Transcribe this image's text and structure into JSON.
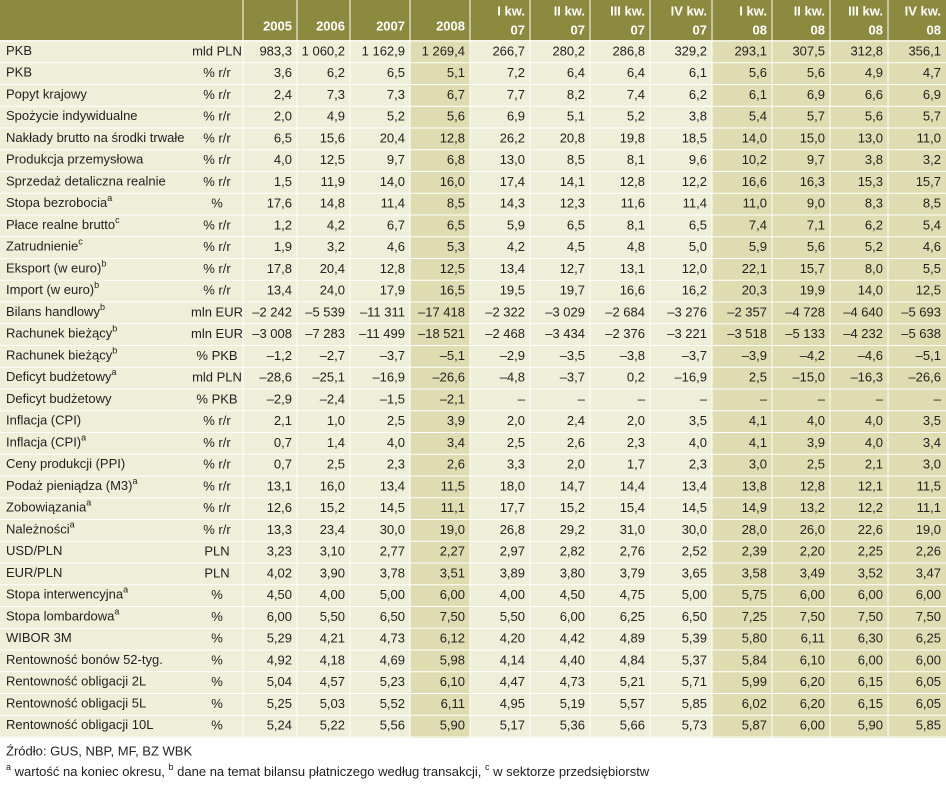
{
  "table": {
    "columns": [
      [
        "2005"
      ],
      [
        "2006"
      ],
      [
        "2007"
      ],
      [
        "2008"
      ],
      [
        "I kw.",
        "07"
      ],
      [
        "II kw.",
        "07"
      ],
      [
        "III kw.",
        "07"
      ],
      [
        "IV kw.",
        "07"
      ],
      [
        "I kw.",
        "08"
      ],
      [
        "II kw.",
        "08"
      ],
      [
        "III kw.",
        "08"
      ],
      [
        "IV kw.",
        "08"
      ]
    ],
    "rows": [
      {
        "label": "PKB",
        "unit": "mld PLN",
        "values": [
          "983,3",
          "1 060,2",
          "1 162,9",
          "1 269,4",
          "266,7",
          "280,2",
          "286,8",
          "329,2",
          "293,1",
          "307,5",
          "312,8",
          "356,1"
        ]
      },
      {
        "label": "PKB",
        "unit": "% r/r",
        "values": [
          "3,6",
          "6,2",
          "6,5",
          "5,1",
          "7,2",
          "6,4",
          "6,4",
          "6,1",
          "5,6",
          "5,6",
          "4,9",
          "4,7"
        ]
      },
      {
        "label": "Popyt krajowy",
        "unit": "% r/r",
        "values": [
          "2,4",
          "7,3",
          "7,3",
          "6,7",
          "7,7",
          "8,2",
          "7,4",
          "6,2",
          "6,1",
          "6,9",
          "6,6",
          "6,9"
        ]
      },
      {
        "label": "Spożycie indywidualne",
        "unit": "% r/r",
        "values": [
          "2,0",
          "4,9",
          "5,2",
          "5,6",
          "6,9",
          "5,1",
          "5,2",
          "3,8",
          "5,4",
          "5,7",
          "5,6",
          "5,7"
        ]
      },
      {
        "label": "Nakłady brutto na środki trwałe",
        "unit": "% r/r",
        "values": [
          "6,5",
          "15,6",
          "20,4",
          "12,8",
          "26,2",
          "20,8",
          "19,8",
          "18,5",
          "14,0",
          "15,0",
          "13,0",
          "11,0"
        ]
      },
      {
        "label": "Produkcja przemysłowa",
        "unit": "% r/r",
        "values": [
          "4,0",
          "12,5",
          "9,7",
          "6,8",
          "13,0",
          "8,5",
          "8,1",
          "9,6",
          "10,2",
          "9,7",
          "3,8",
          "3,2"
        ]
      },
      {
        "label": "Sprzedaż detaliczna realnie",
        "unit": "% r/r",
        "values": [
          "1,5",
          "11,9",
          "14,0",
          "16,0",
          "17,4",
          "14,1",
          "12,8",
          "12,2",
          "16,6",
          "16,3",
          "15,3",
          "15,7"
        ]
      },
      {
        "label": "Stopa bezrobocia",
        "note": "a",
        "unit": "%",
        "values": [
          "17,6",
          "14,8",
          "11,4",
          "8,5",
          "14,3",
          "12,3",
          "11,6",
          "11,4",
          "11,0",
          "9,0",
          "8,3",
          "8,5"
        ]
      },
      {
        "label": "Płace realne brutto",
        "note": "c",
        "unit": "% r/r",
        "values": [
          "1,2",
          "4,2",
          "6,7",
          "6,5",
          "5,9",
          "6,5",
          "8,1",
          "6,5",
          "7,4",
          "7,1",
          "6,2",
          "5,4"
        ]
      },
      {
        "label": "Zatrudnienie",
        "note": "c",
        "unit": "% r/r",
        "values": [
          "1,9",
          "3,2",
          "4,6",
          "5,3",
          "4,2",
          "4,5",
          "4,8",
          "5,0",
          "5,9",
          "5,6",
          "5,2",
          "4,6"
        ]
      },
      {
        "label": "Eksport (w euro)",
        "note": "b",
        "unit": "% r/r",
        "values": [
          "17,8",
          "20,4",
          "12,8",
          "12,5",
          "13,4",
          "12,7",
          "13,1",
          "12,0",
          "22,1",
          "15,7",
          "8,0",
          "5,5"
        ]
      },
      {
        "label": "Import (w euro)",
        "note": "b",
        "unit": "% r/r",
        "values": [
          "13,4",
          "24,0",
          "17,9",
          "16,5",
          "19,5",
          "19,7",
          "16,6",
          "16,2",
          "20,3",
          "19,9",
          "14,0",
          "12,5"
        ]
      },
      {
        "label": "Bilans handlowy",
        "note": "b",
        "unit": "mln EUR",
        "values": [
          "–2 242",
          "–5 539",
          "–11 311",
          "–17 418",
          "–2 322",
          "–3 029",
          "–2 684",
          "–3 276",
          "–2 357",
          "–4 728",
          "–4 640",
          "–5 693"
        ]
      },
      {
        "label": "Rachunek bieżący",
        "note": "b",
        "unit": "mln EUR",
        "values": [
          "–3 008",
          "–7 283",
          "–11 499",
          "–18 521",
          "–2 468",
          "–3 434",
          "–2 376",
          "–3 221",
          "–3 518",
          "–5 133",
          "–4 232",
          "–5 638"
        ]
      },
      {
        "label": "Rachunek bieżący",
        "note": "b",
        "unit": "% PKB",
        "values": [
          "–1,2",
          "–2,7",
          "–3,7",
          "–5,1",
          "–2,9",
          "–3,5",
          "–3,8",
          "–3,7",
          "–3,9",
          "–4,2",
          "–4,6",
          "–5,1"
        ]
      },
      {
        "label": "Deficyt budżetowy",
        "note": "a",
        "unit": "mld PLN",
        "values": [
          "–28,6",
          "–25,1",
          "–16,9",
          "–26,6",
          "–4,8",
          "–3,7",
          "0,2",
          "–16,9",
          "2,5",
          "–15,0",
          "–16,3",
          "–26,6"
        ]
      },
      {
        "label": "Deficyt budżetowy",
        "unit": "% PKB",
        "values": [
          "–2,9",
          "–2,4",
          "–1,5",
          "–2,1",
          "–",
          "–",
          "–",
          "–",
          "–",
          "–",
          "–",
          "–"
        ]
      },
      {
        "label": "Inflacja (CPI)",
        "unit": "% r/r",
        "values": [
          "2,1",
          "1,0",
          "2,5",
          "3,9",
          "2,0",
          "2,4",
          "2,0",
          "3,5",
          "4,1",
          "4,0",
          "4,0",
          "3,5"
        ]
      },
      {
        "label": "Inflacja (CPI)",
        "note": "a",
        "unit": "% r/r",
        "values": [
          "0,7",
          "1,4",
          "4,0",
          "3,4",
          "2,5",
          "2,6",
          "2,3",
          "4,0",
          "4,1",
          "3,9",
          "4,0",
          "3,4"
        ]
      },
      {
        "label": "Ceny produkcji (PPI)",
        "unit": "% r/r",
        "values": [
          "0,7",
          "2,5",
          "2,3",
          "2,6",
          "3,3",
          "2,0",
          "1,7",
          "2,3",
          "3,0",
          "2,5",
          "2,1",
          "3,0"
        ]
      },
      {
        "label": "Podaż pieniądza (M3)",
        "note": "a",
        "unit": "% r/r",
        "values": [
          "13,1",
          "16,0",
          "13,4",
          "11,5",
          "18,0",
          "14,7",
          "14,4",
          "13,4",
          "13,8",
          "12,8",
          "12,1",
          "11,5"
        ]
      },
      {
        "label": "Zobowiązania",
        "note": "a",
        "unit": "% r/r",
        "values": [
          "12,6",
          "15,2",
          "14,5",
          "11,1",
          "17,7",
          "15,2",
          "15,4",
          "14,5",
          "14,9",
          "13,2",
          "12,2",
          "11,1"
        ]
      },
      {
        "label": "Należności",
        "note": "a",
        "unit": "% r/r",
        "values": [
          "13,3",
          "23,4",
          "30,0",
          "19,0",
          "26,8",
          "29,2",
          "31,0",
          "30,0",
          "28,0",
          "26,0",
          "22,6",
          "19,0"
        ]
      },
      {
        "label": "USD/PLN",
        "unit": "PLN",
        "values": [
          "3,23",
          "3,10",
          "2,77",
          "2,27",
          "2,97",
          "2,82",
          "2,76",
          "2,52",
          "2,39",
          "2,20",
          "2,25",
          "2,26"
        ]
      },
      {
        "label": "EUR/PLN",
        "unit": "PLN",
        "values": [
          "4,02",
          "3,90",
          "3,78",
          "3,51",
          "3,89",
          "3,80",
          "3,79",
          "3,65",
          "3,58",
          "3,49",
          "3,52",
          "3,47"
        ]
      },
      {
        "label": "Stopa interwencyjna",
        "note": "a",
        "unit": "%",
        "values": [
          "4,50",
          "4,00",
          "5,00",
          "6,00",
          "4,00",
          "4,50",
          "4,75",
          "5,00",
          "5,75",
          "6,00",
          "6,00",
          "6,00"
        ]
      },
      {
        "label": "Stopa lombardowa",
        "note": "a",
        "unit": "%",
        "values": [
          "6,00",
          "5,50",
          "6,50",
          "7,50",
          "5,50",
          "6,00",
          "6,25",
          "6,50",
          "7,25",
          "7,50",
          "7,50",
          "7,50"
        ]
      },
      {
        "label": "WIBOR 3M",
        "unit": "%",
        "values": [
          "5,29",
          "4,21",
          "4,73",
          "6,12",
          "4,20",
          "4,42",
          "4,89",
          "5,39",
          "5,80",
          "6,11",
          "6,30",
          "6,25"
        ]
      },
      {
        "label": "Rentowność bonów 52-tyg.",
        "unit": "%",
        "values": [
          "4,92",
          "4,18",
          "4,69",
          "5,98",
          "4,14",
          "4,40",
          "4,84",
          "5,37",
          "5,84",
          "6,10",
          "6,00",
          "6,00"
        ]
      },
      {
        "label": "Rentowność obligacji 2L",
        "unit": "%",
        "values": [
          "5,04",
          "4,57",
          "5,23",
          "6,10",
          "4,47",
          "4,73",
          "5,21",
          "5,71",
          "5,99",
          "6,20",
          "6,15",
          "6,05"
        ]
      },
      {
        "label": "Rentowność obligacji 5L",
        "unit": "%",
        "values": [
          "5,25",
          "5,03",
          "5,52",
          "6,11",
          "4,95",
          "5,19",
          "5,57",
          "5,85",
          "6,02",
          "6,20",
          "6,15",
          "6,05"
        ]
      },
      {
        "label": "Rentowność obligacji 10L",
        "unit": "%",
        "values": [
          "5,24",
          "5,22",
          "5,56",
          "5,90",
          "5,17",
          "5,36",
          "5,66",
          "5,73",
          "5,87",
          "6,00",
          "5,90",
          "5,85"
        ]
      }
    ]
  },
  "footer": {
    "source": "Źródło: GUS, NBP, MF, BZ WBK",
    "notes": [
      {
        "mark": "a",
        "text": " wartość na koniec okresu, "
      },
      {
        "mark": "b",
        "text": " dane na temat bilansu płatniczego według transakcji, "
      },
      {
        "mark": "c",
        "text": " w sektorze przedsiębiorstw"
      }
    ]
  }
}
